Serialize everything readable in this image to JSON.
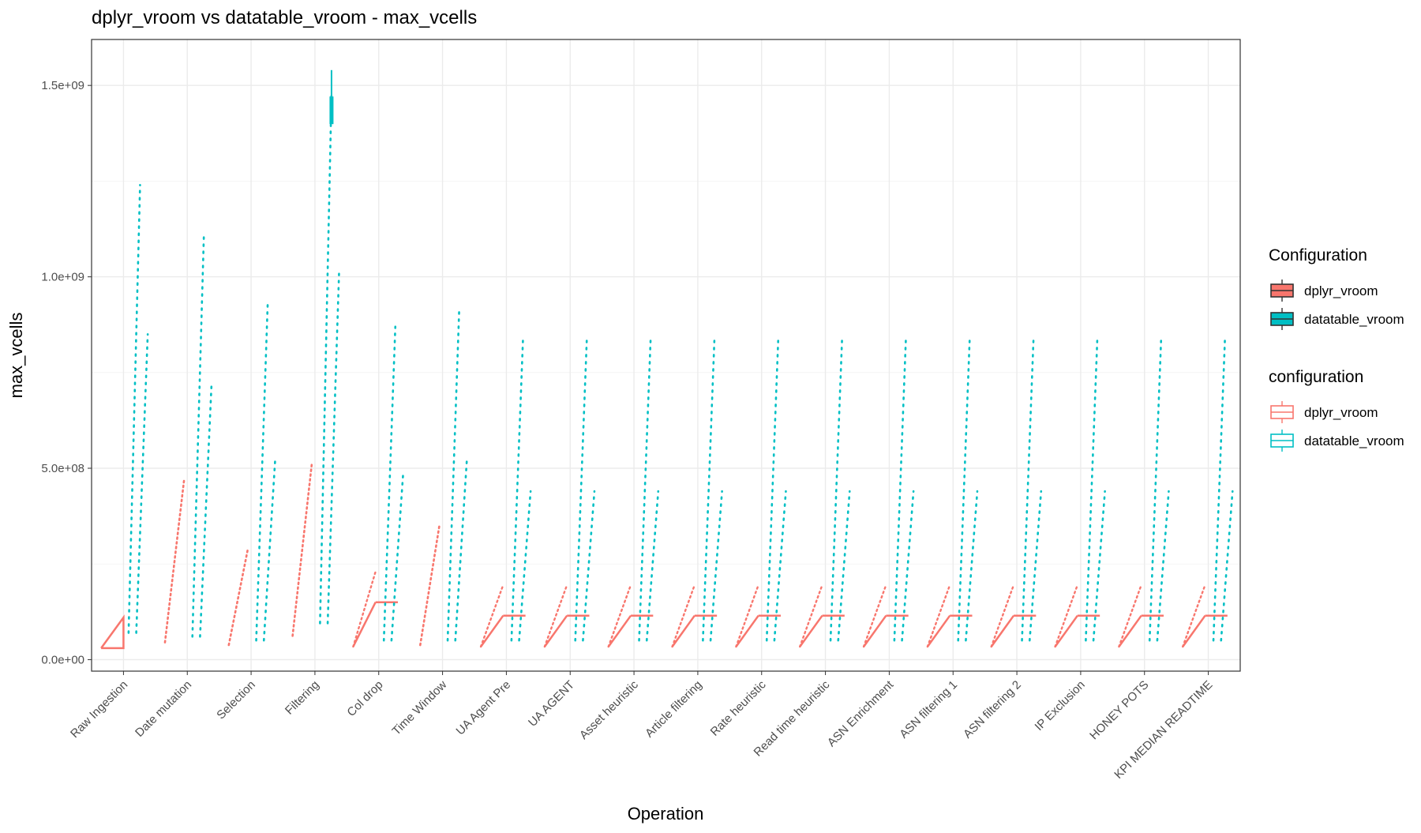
{
  "chart_data": {
    "type": "boxplot",
    "title": "dplyr_vroom vs datatable_vroom - max_vcells",
    "xlabel": "Operation",
    "ylabel": "max_vcells",
    "ylim": [
      -30000000,
      1620000000
    ],
    "y_ticks": [
      0,
      500000000,
      1000000000,
      1500000000
    ],
    "y_tick_labels": [
      "0.0e+00",
      "5.0e+08",
      "1.0e+09",
      "1.5e+09"
    ],
    "grid": true,
    "legend_position": "right",
    "categories": [
      "Raw Ingestion",
      "Date mutation",
      "Selection",
      "Filtering",
      "Col drop",
      "Time Window",
      "UA Agent Pre",
      "UA AGENT",
      "Asset heuristic",
      "Article filtering",
      "Rate heuristic",
      "Read time heuristic",
      "ASN Enrichment",
      "ASN filtering 1",
      "ASN filtering 2",
      "IP Exclusion",
      "HONEY POTS",
      "KPI MEDIAN READTIME"
    ],
    "series": [
      {
        "name": "dplyr_vroom",
        "color": "#F8766D",
        "low": [
          30000000,
          45000000,
          38000000,
          62000000,
          34000000,
          38000000,
          34000000,
          34000000,
          34000000,
          34000000,
          34000000,
          34000000,
          34000000,
          34000000,
          34000000,
          34000000,
          34000000,
          34000000
        ],
        "high": [
          110000000,
          470000000,
          290000000,
          510000000,
          230000000,
          350000000,
          195000000,
          195000000,
          195000000,
          195000000,
          195000000,
          195000000,
          195000000,
          195000000,
          195000000,
          195000000,
          195000000,
          195000000
        ],
        "mid": [
          110000000,
          null,
          null,
          null,
          150000000,
          null,
          115000000,
          115000000,
          115000000,
          115000000,
          115000000,
          115000000,
          115000000,
          115000000,
          115000000,
          115000000,
          115000000,
          115000000
        ]
      },
      {
        "name": "datatable_vroom",
        "color": "#00BFC4",
        "low": [
          70000000,
          60000000,
          50000000,
          95000000,
          50000000,
          50000000,
          50000000,
          50000000,
          50000000,
          50000000,
          50000000,
          50000000,
          50000000,
          50000000,
          50000000,
          50000000,
          50000000,
          50000000
        ],
        "high": [
          1240000000,
          1110000000,
          930000000,
          1480000000,
          870000000,
          910000000,
          835000000,
          835000000,
          835000000,
          835000000,
          835000000,
          835000000,
          835000000,
          835000000,
          835000000,
          835000000,
          835000000,
          835000000
        ],
        "upper_cluster": [
          850000000,
          720000000,
          530000000,
          1020000000,
          480000000,
          520000000,
          440000000,
          440000000,
          440000000,
          440000000,
          440000000,
          440000000,
          440000000,
          440000000,
          440000000,
          440000000,
          440000000,
          440000000
        ],
        "box": [
          null,
          null,
          null,
          [
            1400000000,
            1470000000
          ],
          null,
          null,
          null,
          null,
          null,
          null,
          null,
          null,
          null,
          null,
          null,
          null,
          null,
          null
        ],
        "whisker_top": [
          null,
          null,
          null,
          1540000000,
          null,
          null,
          null,
          null,
          null,
          null,
          null,
          null,
          null,
          null,
          null,
          null,
          null,
          null
        ]
      }
    ],
    "legends": [
      {
        "title": "Configuration",
        "style": "filled",
        "items": [
          "dplyr_vroom",
          "datatable_vroom"
        ]
      },
      {
        "title": "configuration",
        "style": "outline",
        "items": [
          "dplyr_vroom",
          "datatable_vroom"
        ]
      }
    ]
  }
}
